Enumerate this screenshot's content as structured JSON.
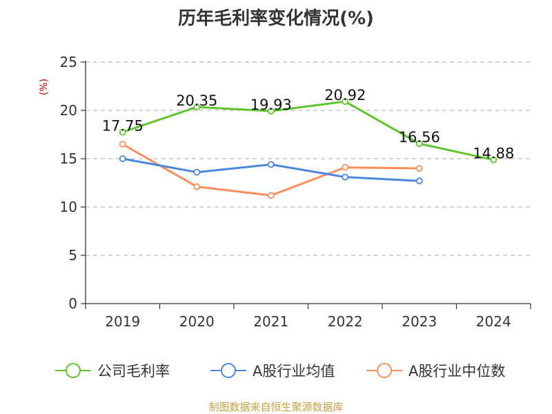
{
  "chart_data": {
    "type": "line",
    "title": "历年毛利率变化情况(%)",
    "ylabel": "(%)",
    "xlabel": "",
    "categories": [
      "2019",
      "2020",
      "2021",
      "2022",
      "2023",
      "2024"
    ],
    "ylim": [
      0,
      25
    ],
    "yticks": [
      0,
      5,
      10,
      15,
      20,
      25
    ],
    "grid": true,
    "legend_position": "bottom",
    "series": [
      {
        "name": "公司毛利率",
        "color": "#5cc52a",
        "values": [
          17.75,
          20.35,
          19.93,
          20.92,
          16.56,
          14.88
        ],
        "data_labels": [
          "17.75",
          "20.35",
          "19.93",
          "20.92",
          "16.56",
          "14.88"
        ]
      },
      {
        "name": "A股行业均值",
        "color": "#4a86e0",
        "values": [
          15.0,
          13.6,
          14.4,
          13.1,
          12.7,
          null
        ]
      },
      {
        "name": "A股行业中位数",
        "color": "#ff8c5a",
        "values": [
          16.5,
          12.1,
          11.2,
          14.1,
          14.0,
          null
        ]
      }
    ]
  },
  "footer": {
    "source": "制图数据来自恒生聚源数据库"
  },
  "colors": {
    "axis": "#333333",
    "grid": "#bbbbbb",
    "ylabel": "#cc0000",
    "source": "#c8a040"
  }
}
